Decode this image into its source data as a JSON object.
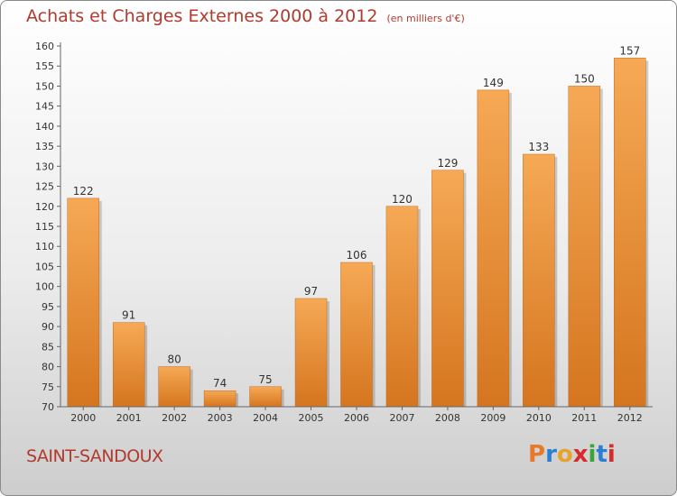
{
  "title": "Achats et Charges Externes 2000 à 2012",
  "unit": "(en milliers d'€)",
  "commune": "SAINT-SANDOUX",
  "logo": {
    "text": "Proxiti",
    "letters": [
      "P",
      "r",
      "o",
      "x",
      "i",
      "t",
      "i"
    ],
    "colors": [
      "#e8782a",
      "#2a7fd4",
      "#e8a32a",
      "#d62b2b",
      "#3aa63a",
      "#2a7fd4",
      "#d62b2b"
    ]
  },
  "colors": {
    "bar_light": "#f6a955",
    "bar_dark": "#d5751f",
    "title": "#b03a2e"
  },
  "chart_data": {
    "type": "bar",
    "categories": [
      "2000",
      "2001",
      "2002",
      "2003",
      "2004",
      "2005",
      "2006",
      "2007",
      "2008",
      "2009",
      "2010",
      "2011",
      "2012"
    ],
    "values": [
      122,
      91,
      80,
      74,
      75,
      97,
      106,
      120,
      129,
      149,
      133,
      150,
      157
    ],
    "ylim": [
      70,
      160
    ],
    "yticks": [
      70,
      75,
      80,
      85,
      90,
      95,
      100,
      105,
      110,
      115,
      120,
      125,
      130,
      135,
      140,
      145,
      150,
      155,
      160
    ],
    "grid": false
  }
}
